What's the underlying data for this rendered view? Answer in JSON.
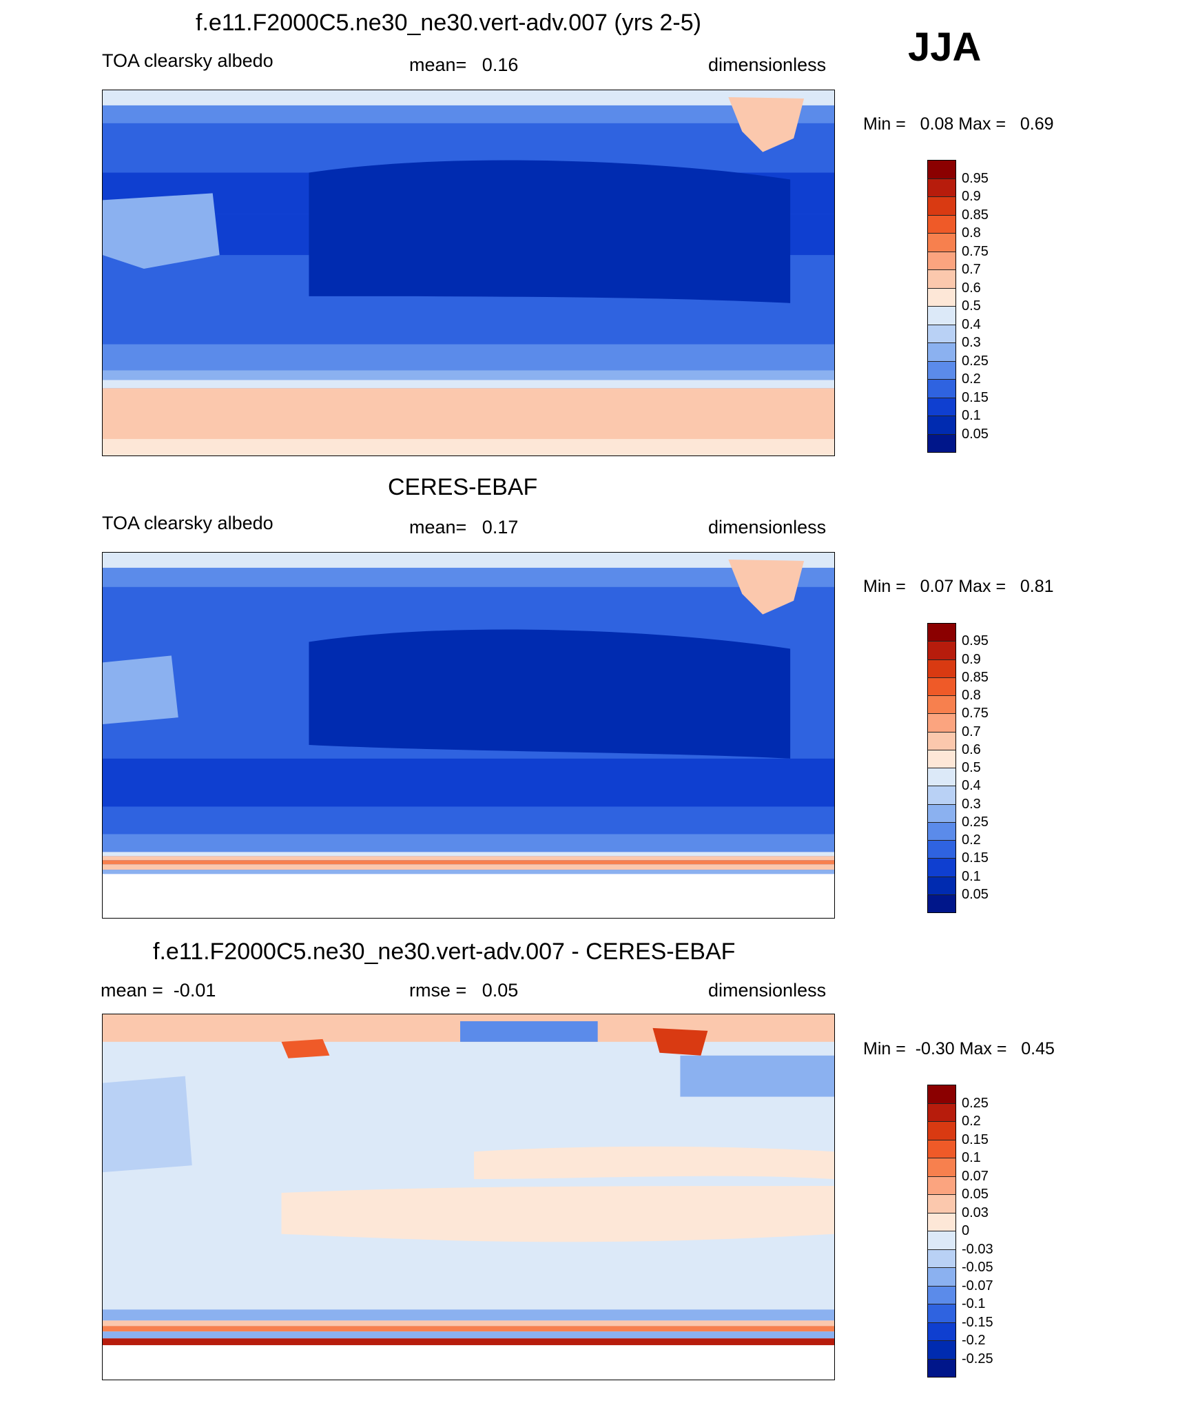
{
  "season": "JJA",
  "panels": [
    {
      "title": "f.e11.F2000C5.ne30_ne30.vert-adv.007 (yrs 2-5)",
      "left_label": "TOA clearsky albedo",
      "center_label": "mean=   0.16",
      "right_label": "dimensionless",
      "minmax": "Min =   0.08 Max =   0.69",
      "map_name": "model-map"
    },
    {
      "title": "CERES-EBAF",
      "left_label": "TOA clearsky albedo",
      "center_label": "mean=   0.17",
      "right_label": "dimensionless",
      "minmax": "Min =   0.07 Max =   0.81",
      "map_name": "obs-map"
    },
    {
      "title": "f.e11.F2000C5.ne30_ne30.vert-adv.007 - CERES-EBAF",
      "left_label": "mean =  -0.01",
      "center_label": "rmse =   0.05",
      "right_label": "dimensionless",
      "minmax": "Min =  -0.30 Max =   0.45",
      "map_name": "difference-map"
    }
  ],
  "colorbars": [
    {
      "labels": [
        "0.95",
        "0.9",
        "0.85",
        "0.8",
        "0.75",
        "0.7",
        "0.6",
        "0.5",
        "0.4",
        "0.3",
        "0.25",
        "0.2",
        "0.15",
        "0.1",
        "0.05"
      ],
      "colors": [
        "#8b0000",
        "#b71c0c",
        "#d93a12",
        "#ef5a28",
        "#f7804e",
        "#fba47f",
        "#fbc8ad",
        "#fde7d7",
        "#dce9f8",
        "#b9d1f5",
        "#8bb1f0",
        "#5b8bea",
        "#2f63e0",
        "#0f3fd0",
        "#002bb0",
        "#00168a"
      ]
    },
    {
      "labels": [
        "0.95",
        "0.9",
        "0.85",
        "0.8",
        "0.75",
        "0.7",
        "0.6",
        "0.5",
        "0.4",
        "0.3",
        "0.25",
        "0.2",
        "0.15",
        "0.1",
        "0.05"
      ],
      "colors": [
        "#8b0000",
        "#b71c0c",
        "#d93a12",
        "#ef5a28",
        "#f7804e",
        "#fba47f",
        "#fbc8ad",
        "#fde7d7",
        "#dce9f8",
        "#b9d1f5",
        "#8bb1f0",
        "#5b8bea",
        "#2f63e0",
        "#0f3fd0",
        "#002bb0",
        "#00168a"
      ]
    },
    {
      "labels": [
        "0.25",
        "0.2",
        "0.15",
        "0.1",
        "0.07",
        "0.05",
        "0.03",
        "0",
        "-0.03",
        "-0.05",
        "-0.07",
        "-0.1",
        "-0.15",
        "-0.2",
        "-0.25"
      ],
      "colors": [
        "#8b0000",
        "#b71c0c",
        "#d93a12",
        "#ef5a28",
        "#f7804e",
        "#fba47f",
        "#fbc8ad",
        "#fde7d7",
        "#dce9f8",
        "#b9d1f5",
        "#8bb1f0",
        "#5b8bea",
        "#2f63e0",
        "#0f3fd0",
        "#002bb0",
        "#00168a"
      ]
    }
  ],
  "chart_data": [
    {
      "type": "heatmap",
      "title": "f.e11.F2000C5.ne30_ne30.vert-adv.007 (yrs 2-5)",
      "variable": "TOA clearsky albedo",
      "units": "dimensionless",
      "season": "JJA",
      "mean": 0.16,
      "min": 0.08,
      "max": 0.69,
      "levels": [
        0.05,
        0.1,
        0.15,
        0.2,
        0.25,
        0.3,
        0.4,
        0.5,
        0.6,
        0.7,
        0.75,
        0.8,
        0.85,
        0.9,
        0.95
      ]
    },
    {
      "type": "heatmap",
      "title": "CERES-EBAF",
      "variable": "TOA clearsky albedo",
      "units": "dimensionless",
      "season": "JJA",
      "mean": 0.17,
      "min": 0.07,
      "max": 0.81,
      "levels": [
        0.05,
        0.1,
        0.15,
        0.2,
        0.25,
        0.3,
        0.4,
        0.5,
        0.6,
        0.7,
        0.75,
        0.8,
        0.85,
        0.9,
        0.95
      ]
    },
    {
      "type": "heatmap",
      "title": "f.e11.F2000C5.ne30_ne30.vert-adv.007 - CERES-EBAF",
      "units": "dimensionless",
      "season": "JJA",
      "mean": -0.01,
      "rmse": 0.05,
      "min": -0.3,
      "max": 0.45,
      "levels": [
        -0.25,
        -0.2,
        -0.15,
        -0.1,
        -0.07,
        -0.05,
        -0.03,
        0,
        0.03,
        0.05,
        0.07,
        0.1,
        0.15,
        0.2,
        0.25
      ]
    }
  ]
}
